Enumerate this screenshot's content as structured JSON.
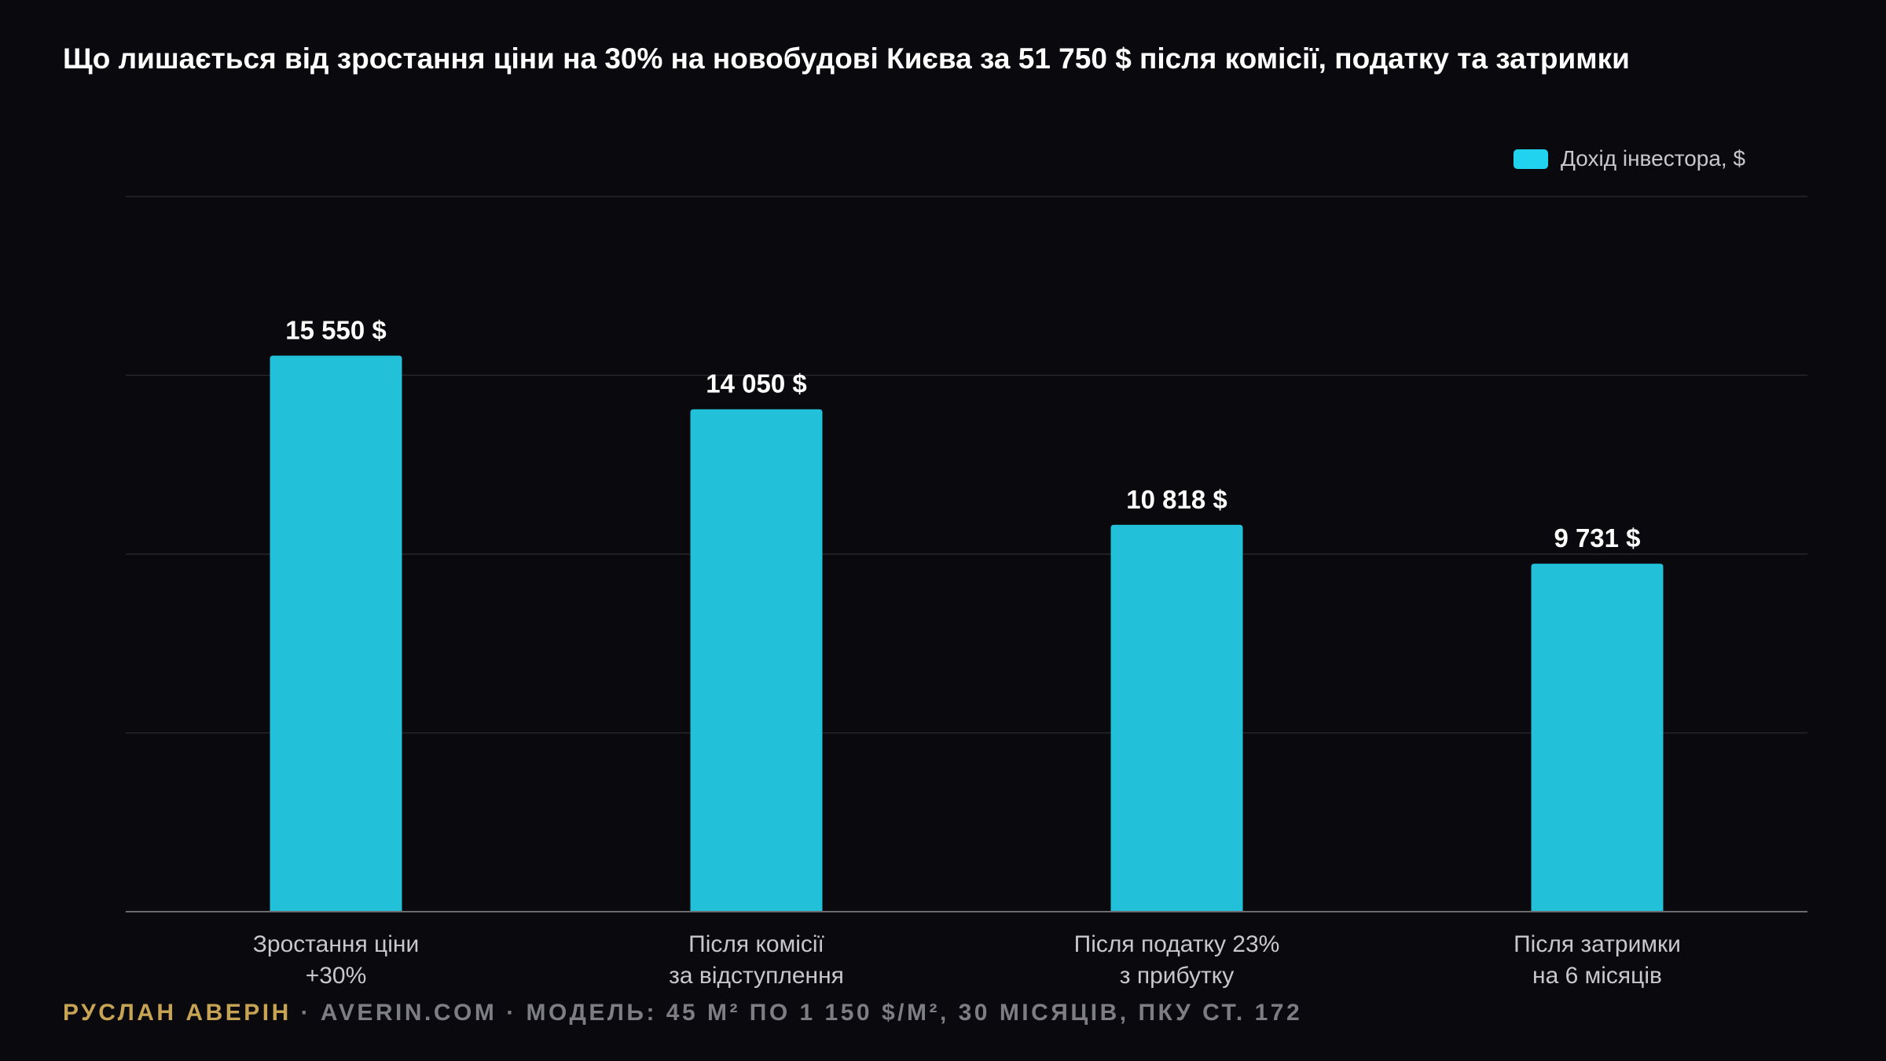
{
  "title": "Що лишається від зростання ціни на 30% на новобудові Києва за 51 750 $ після комісії, податку та затримки",
  "colors": {
    "background": "#0a0a0e",
    "bar": "#22c0d9",
    "legend_swatch": "#22d3f0",
    "grid": "#26262b",
    "axis": "#6b6b70",
    "label": "#c7c7cc",
    "value_label": "#ffffff",
    "author": "#c7a453",
    "footer": "#7d7d84"
  },
  "chart_data": {
    "type": "bar",
    "title": "Що лишається від зростання ціни на 30% на новобудові Києва за 51 750 $ після комісії, податку та затримки",
    "categories": [
      [
        "Зростання ціни",
        "+30%"
      ],
      [
        "Після комісії",
        "за відступлення"
      ],
      [
        "Після податку 23%",
        "з прибутку"
      ],
      [
        "Після затримки",
        "на 6 місяців"
      ]
    ],
    "series": [
      {
        "name": "Дохід інвестора, $",
        "values": [
          15550,
          14050,
          10818,
          9731
        ],
        "labels": [
          "15 550 $",
          "14 050 $",
          "10 818 $",
          "9 731 $"
        ]
      }
    ],
    "ylim": [
      0,
      20000
    ],
    "grid": true,
    "legend_position": "top-right",
    "xlabel": "",
    "ylabel": ""
  },
  "footer": {
    "author": "РУСЛАН АВЕРІН",
    "rest": " · AVERIN.COM · МОДЕЛЬ: 45 М² ПО 1 150 $/М², 30 МІСЯЦІВ, ПКУ СТ. 172"
  }
}
